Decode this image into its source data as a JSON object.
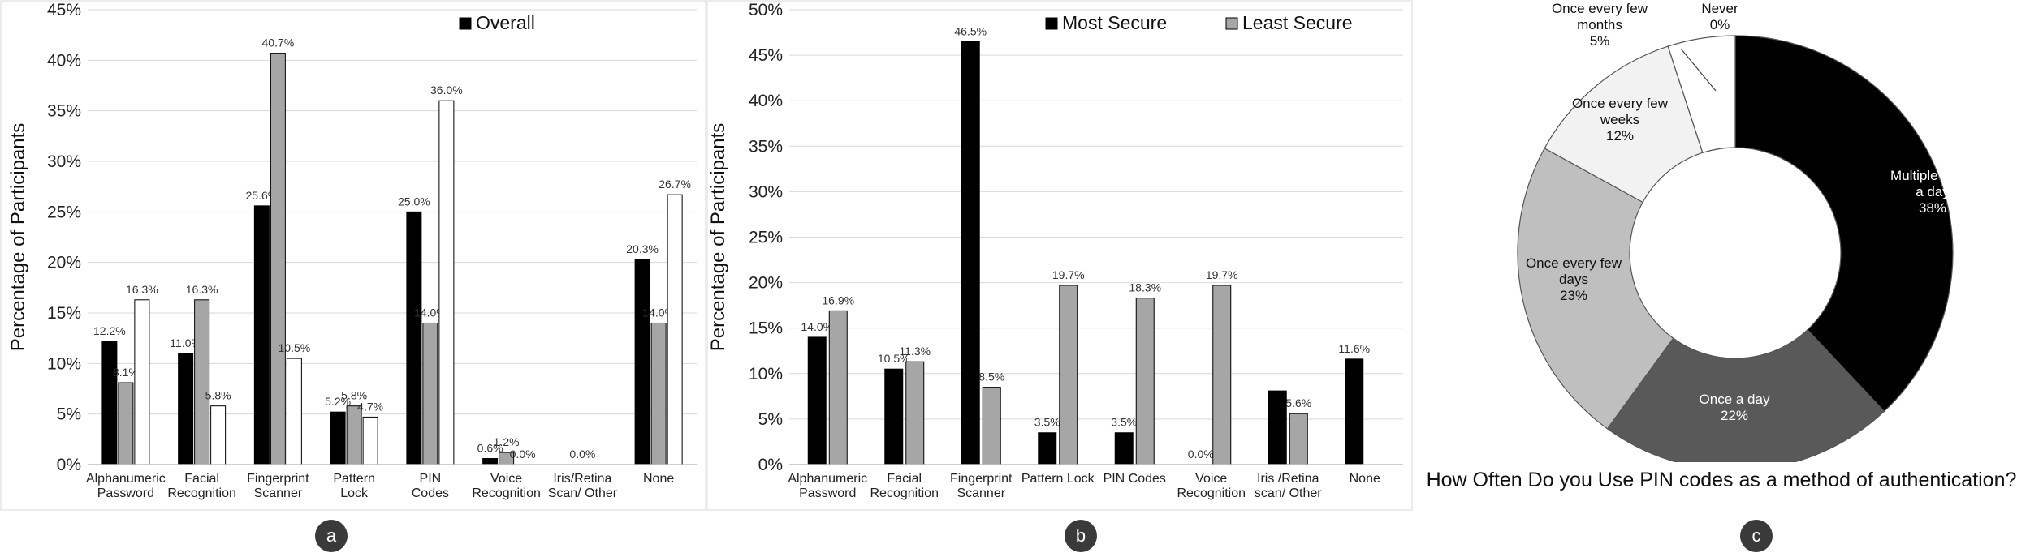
{
  "charts": {
    "a": {
      "badge": "a",
      "chart_data": {
        "type": "bar",
        "ylabel": "Percentage of Participants",
        "ylim": [
          0,
          45
        ],
        "yticks": [
          0,
          5,
          10,
          15,
          20,
          25,
          30,
          35,
          40,
          45
        ],
        "categories": [
          "Alphanumeric\nPassword",
          "Facial\nRecognition",
          "Fingerprint\nScanner",
          "Pattern\nLock",
          "PIN\nCodes",
          "Voice\nRecognition",
          "Iris/Retina\nScan/ Other",
          "None"
        ],
        "series": [
          {
            "name": "",
            "color": "#000000",
            "values": [
              12.2,
              11.0,
              25.6,
              5.2,
              25.0,
              0.6,
              0.0,
              20.3
            ],
            "labels": [
              "12.2%",
              "11.0%",
              "25.6%",
              "5.2%",
              "25.0%",
              "0.6%",
              "",
              "20.3%"
            ]
          },
          {
            "name": "",
            "color": "#a6a6a6",
            "values": [
              8.1,
              16.3,
              40.7,
              5.8,
              14.0,
              1.2,
              0.0,
              14.0
            ],
            "labels": [
              "8.1%",
              "16.3%",
              "40.7%",
              "5.8%",
              "14.0%",
              "1.2%",
              "0.0%",
              "14.0%"
            ]
          },
          {
            "name": "Overall",
            "color": "#ffffff",
            "values": [
              16.3,
              5.8,
              10.5,
              4.7,
              36.0,
              0.0,
              0.0,
              26.7
            ],
            "labels": [
              "16.3%",
              "5.8%",
              "10.5%",
              "4.7%",
              "36.0%",
              "0.0%",
              "",
              "26.7%"
            ]
          }
        ],
        "legend": [
          {
            "name": "Overall",
            "color": "#000000"
          }
        ],
        "legend_position": "top-right",
        "grid": true
      }
    },
    "b": {
      "badge": "b",
      "chart_data": {
        "type": "bar",
        "ylabel": "Percentage of Participants",
        "ylim": [
          0,
          50
        ],
        "yticks": [
          0,
          5,
          10,
          15,
          20,
          25,
          30,
          35,
          40,
          45,
          50
        ],
        "categories": [
          "Alphanumeric\nPassword",
          "Facial\nRecognition",
          "Fingerprint\nScanner",
          "Pattern Lock",
          "PIN Codes",
          "Voice\nRecognition",
          "Iris /Retina\nscan/ Other",
          "None"
        ],
        "series": [
          {
            "name": "Most Secure",
            "color": "#000000",
            "values": [
              14.0,
              10.5,
              46.5,
              3.5,
              3.5,
              0.0,
              8.1,
              11.6
            ],
            "labels": [
              "14.0%",
              "10.5%",
              "46.5%",
              "3.5%",
              "3.5%",
              "0.0%",
              "",
              "11.6%"
            ]
          },
          {
            "name": "Least Secure",
            "color": "#a6a6a6",
            "values": [
              16.9,
              11.3,
              8.5,
              19.7,
              18.3,
              19.7,
              5.6,
              0.0
            ],
            "labels": [
              "16.9%",
              "11.3%",
              "8.5%",
              "19.7%",
              "18.3%",
              "19.7%",
              "5.6%",
              ""
            ]
          }
        ],
        "legend": [
          {
            "name": "Most Secure",
            "color": "#000000"
          },
          {
            "name": "Least Secure",
            "color": "#a6a6a6"
          }
        ],
        "legend_position": "top-right",
        "grid": true
      }
    },
    "c": {
      "badge": "c",
      "chart_data": {
        "type": "pie",
        "title": "How Often Do you Use PIN codes as a method of authentication?",
        "slices": [
          {
            "label": "Multiple times\na day",
            "pct_label": "38%",
            "value": 38,
            "color": "#000000",
            "text_color": "#ffffff"
          },
          {
            "label": "Once a day",
            "pct_label": "22%",
            "value": 22,
            "color": "#595959",
            "text_color": "#ffffff"
          },
          {
            "label": "Once every few\ndays",
            "pct_label": "23%",
            "value": 23,
            "color": "#bfbfbf",
            "text_color": "#111111"
          },
          {
            "label": "Once every few\nweeks",
            "pct_label": "12%",
            "value": 12,
            "color": "#f2f2f2",
            "text_color": "#111111"
          },
          {
            "label": "Once every few\nmonths",
            "pct_label": "5%",
            "value": 5,
            "color": "#ffffff",
            "text_color": "#111111"
          },
          {
            "label": "Never",
            "pct_label": "0%",
            "value": 0,
            "color": "#ffffff",
            "text_color": "#111111"
          }
        ]
      }
    }
  }
}
